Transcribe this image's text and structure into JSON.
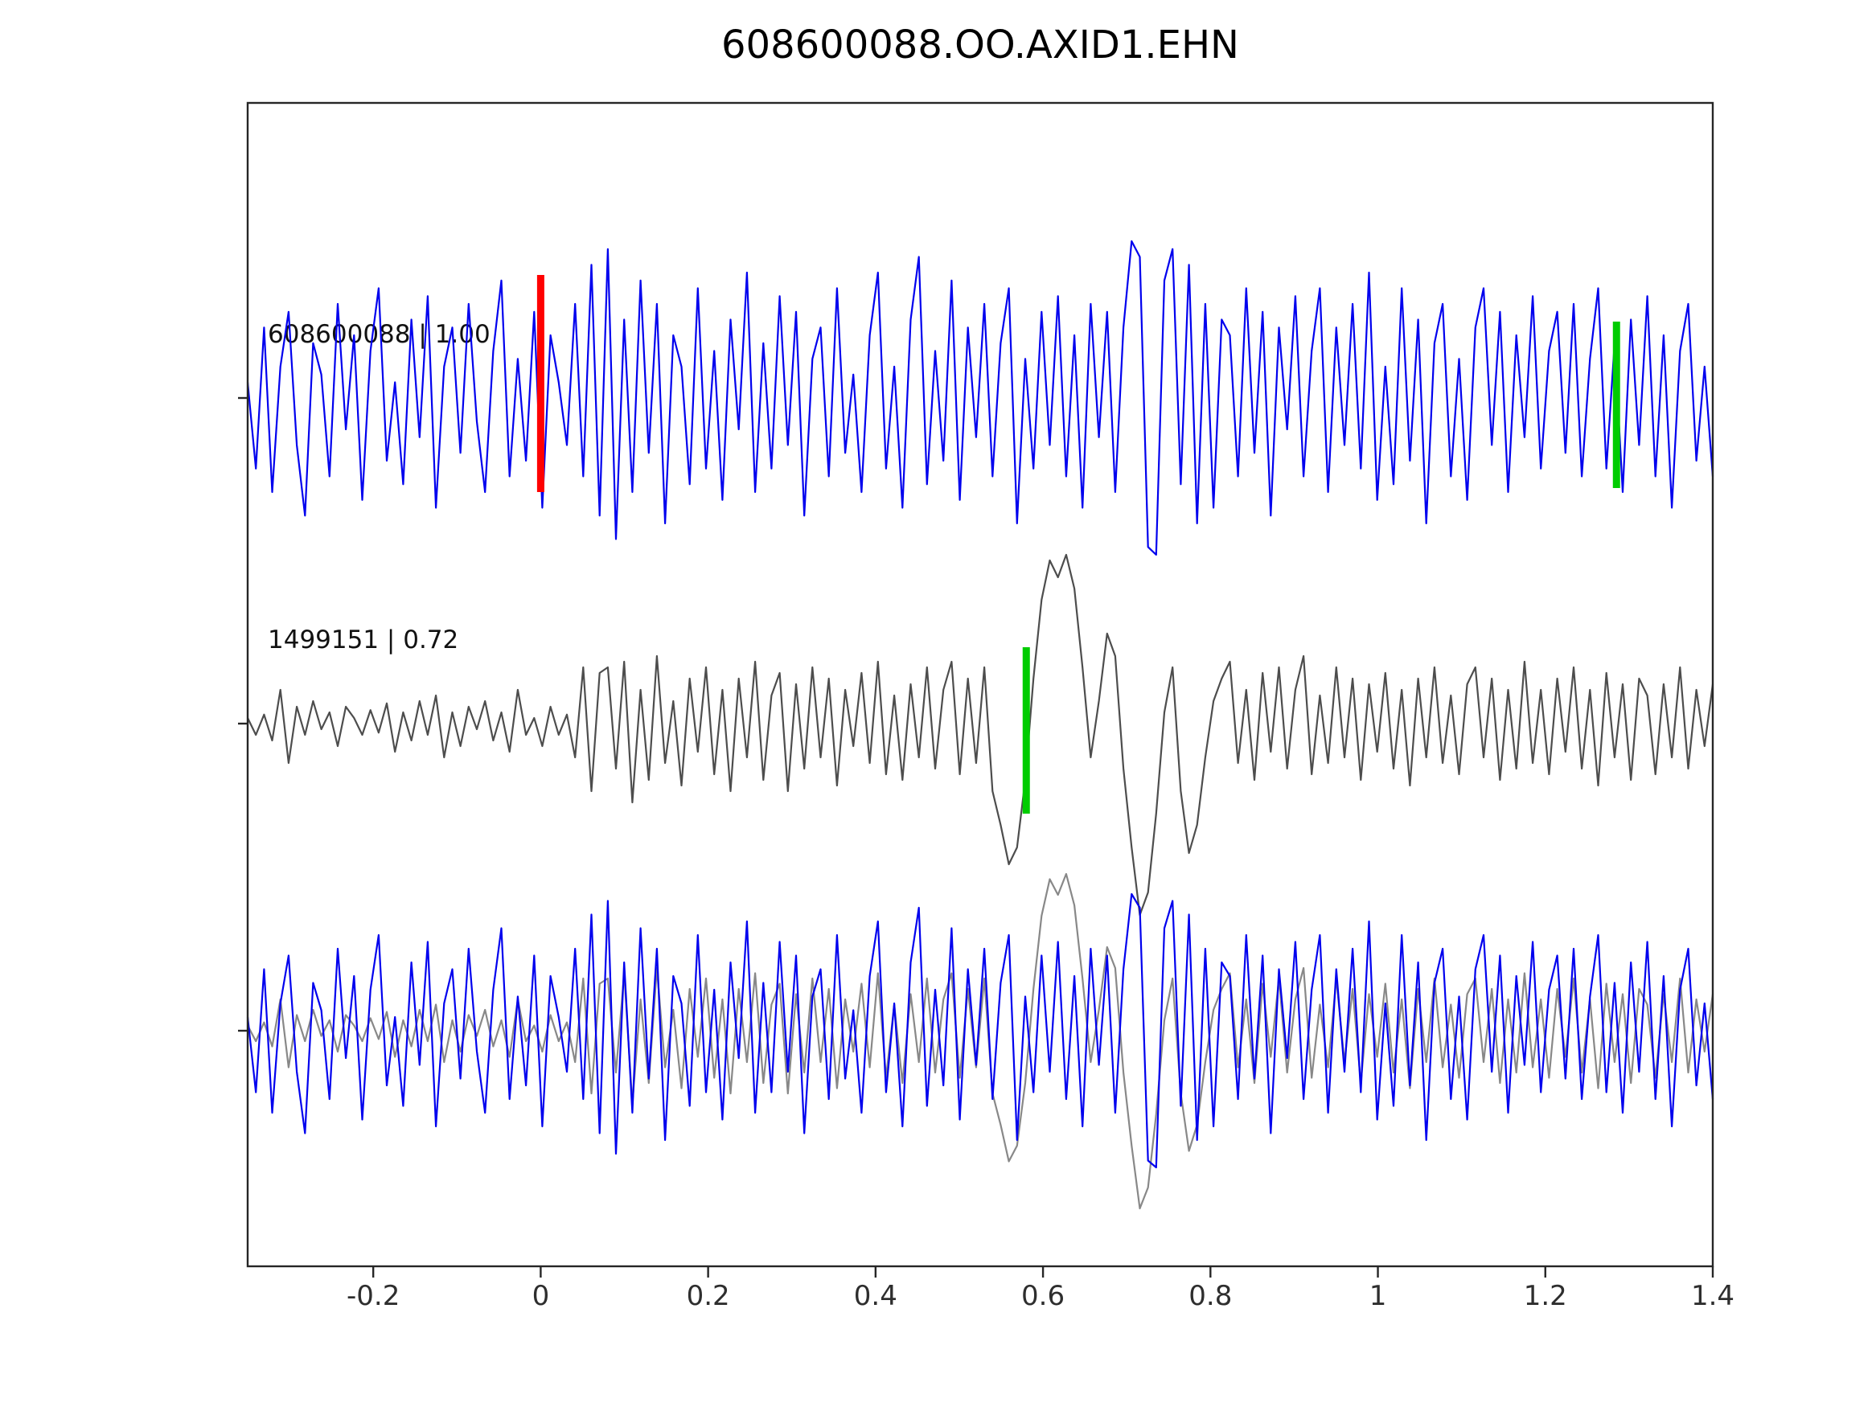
{
  "title": "608600088.OO.AXID1.EHN",
  "chart_data": {
    "type": "line",
    "title": "608600088.OO.AXID1.EHN",
    "xlabel": "",
    "ylabel": "",
    "xlim": [
      -0.35,
      1.4
    ],
    "grid": false,
    "legend_position": "none",
    "x_tick_labels": [
      "-0.2",
      "0",
      "0.2",
      "0.4",
      "0.6",
      "0.8",
      "1",
      "1.2",
      "1.4"
    ],
    "x_tick_values": [
      -0.2,
      0,
      0.2,
      0.4,
      0.6,
      0.8,
      1.0,
      1.2,
      1.4
    ],
    "rows_description": [
      "template trace 608600088 (blue)",
      "matched event 1499151 (gray)",
      "aligned overlay of both traces"
    ],
    "series": [
      {
        "name": "608600088",
        "label": "608600088 | 1.00",
        "correlation": "1.00",
        "color": "#0000ee",
        "values": [
          0.1,
          -0.45,
          0.45,
          -0.6,
          0.2,
          0.55,
          -0.3,
          -0.75,
          0.35,
          0.15,
          -0.5,
          0.6,
          -0.2,
          0.4,
          -0.65,
          0.3,
          0.7,
          -0.4,
          0.1,
          -0.55,
          0.5,
          -0.25,
          0.65,
          -0.7,
          0.2,
          0.45,
          -0.35,
          0.6,
          -0.15,
          -0.6,
          0.3,
          0.75,
          -0.5,
          0.25,
          -0.4,
          0.55,
          -0.7,
          0.4,
          0.1,
          -0.3,
          0.6,
          -0.5,
          0.85,
          -0.75,
          0.95,
          -0.9,
          0.5,
          -0.6,
          0.75,
          -0.35,
          0.6,
          -0.8,
          0.4,
          0.2,
          -0.55,
          0.7,
          -0.45,
          0.3,
          -0.65,
          0.5,
          -0.2,
          0.8,
          -0.6,
          0.35,
          -0.45,
          0.65,
          -0.3,
          0.55,
          -0.75,
          0.25,
          0.45,
          -0.5,
          0.7,
          -0.35,
          0.15,
          -0.6,
          0.4,
          0.8,
          -0.45,
          0.2,
          -0.7,
          0.5,
          0.9,
          -0.55,
          0.3,
          -0.4,
          0.75,
          -0.65,
          0.45,
          -0.25,
          0.6,
          -0.5,
          0.35,
          0.7,
          -0.8,
          0.25,
          -0.45,
          0.55,
          -0.3,
          0.65,
          -0.5,
          0.4,
          -0.7,
          0.6,
          -0.25,
          0.55,
          -0.6,
          0.45,
          1.0,
          0.9,
          -0.95,
          -1.0,
          0.75,
          0.95,
          -0.55,
          0.85,
          -0.8,
          0.6,
          -0.7,
          0.5,
          0.4,
          -0.5,
          0.7,
          -0.35,
          0.55,
          -0.75,
          0.45,
          -0.2,
          0.65,
          -0.5,
          0.3,
          0.7,
          -0.6,
          0.45,
          -0.3,
          0.6,
          -0.45,
          0.8,
          -0.65,
          0.2,
          -0.55,
          0.7,
          -0.4,
          0.5,
          -0.8,
          0.35,
          0.6,
          -0.5,
          0.25,
          -0.65,
          0.45,
          0.7,
          -0.3,
          0.55,
          -0.6,
          0.4,
          -0.25,
          0.65,
          -0.45,
          0.3,
          0.55,
          -0.35,
          0.6,
          -0.5,
          0.25,
          0.7,
          -0.45,
          0.35,
          -0.6,
          0.5,
          -0.3,
          0.65,
          -0.5,
          0.4,
          -0.7,
          0.3,
          0.6,
          -0.4,
          0.2,
          -0.5
        ]
      },
      {
        "name": "1499151",
        "label": "1499151 | 0.72",
        "correlation": "0.72",
        "color": "#4d4d4d",
        "values": [
          0.05,
          -0.1,
          0.08,
          -0.15,
          0.3,
          -0.35,
          0.15,
          -0.1,
          0.2,
          -0.05,
          0.1,
          -0.2,
          0.15,
          0.05,
          -0.1,
          0.12,
          -0.08,
          0.18,
          -0.25,
          0.1,
          -0.15,
          0.2,
          -0.1,
          0.25,
          -0.3,
          0.1,
          -0.2,
          0.15,
          -0.05,
          0.2,
          -0.15,
          0.1,
          -0.25,
          0.3,
          -0.1,
          0.05,
          -0.2,
          0.15,
          -0.1,
          0.08,
          -0.3,
          0.5,
          -0.6,
          0.45,
          0.5,
          -0.4,
          0.55,
          -0.7,
          0.3,
          -0.5,
          0.6,
          -0.35,
          0.2,
          -0.55,
          0.4,
          -0.25,
          0.5,
          -0.45,
          0.3,
          -0.6,
          0.4,
          -0.3,
          0.55,
          -0.5,
          0.25,
          0.45,
          -0.6,
          0.35,
          -0.4,
          0.5,
          -0.3,
          0.4,
          -0.55,
          0.3,
          -0.2,
          0.45,
          -0.35,
          0.55,
          -0.45,
          0.25,
          -0.5,
          0.35,
          -0.3,
          0.5,
          -0.4,
          0.3,
          0.55,
          -0.45,
          0.4,
          -0.35,
          0.5,
          -0.6,
          -0.9,
          -1.25,
          -1.1,
          -0.5,
          0.4,
          1.1,
          1.45,
          1.3,
          1.5,
          1.2,
          0.5,
          -0.3,
          0.2,
          0.8,
          0.6,
          -0.4,
          -1.1,
          -1.7,
          -1.5,
          -0.8,
          0.1,
          0.5,
          -0.6,
          -1.15,
          -0.9,
          -0.3,
          0.2,
          0.4,
          0.55,
          -0.35,
          0.3,
          -0.5,
          0.45,
          -0.25,
          0.5,
          -0.4,
          0.3,
          0.6,
          -0.45,
          0.25,
          -0.35,
          0.5,
          -0.3,
          0.4,
          -0.5,
          0.35,
          -0.25,
          0.45,
          -0.4,
          0.3,
          -0.55,
          0.4,
          -0.3,
          0.5,
          -0.35,
          0.25,
          -0.45,
          0.35,
          0.5,
          -0.3,
          0.4,
          -0.5,
          0.3,
          -0.4,
          0.55,
          -0.35,
          0.3,
          -0.45,
          0.4,
          -0.25,
          0.5,
          -0.4,
          0.3,
          -0.55,
          0.45,
          -0.3,
          0.35,
          -0.5,
          0.4,
          0.25,
          -0.45,
          0.35,
          -0.3,
          0.5,
          -0.4,
          0.3,
          -0.2,
          0.35
        ]
      }
    ],
    "markers": [
      {
        "name": "pick-marker-red",
        "series_index": 0,
        "x": 0.0,
        "color": "#ff0000"
      },
      {
        "name": "pick-marker-green-top",
        "series_index": 0,
        "x": 1.285,
        "color": "#00cc00"
      },
      {
        "name": "pick-marker-green-middle",
        "series_index": 1,
        "x": 0.58,
        "color": "#00cc00"
      }
    ],
    "overlay_colors": {
      "blue": "#0000ee",
      "gray": "#888888"
    }
  }
}
